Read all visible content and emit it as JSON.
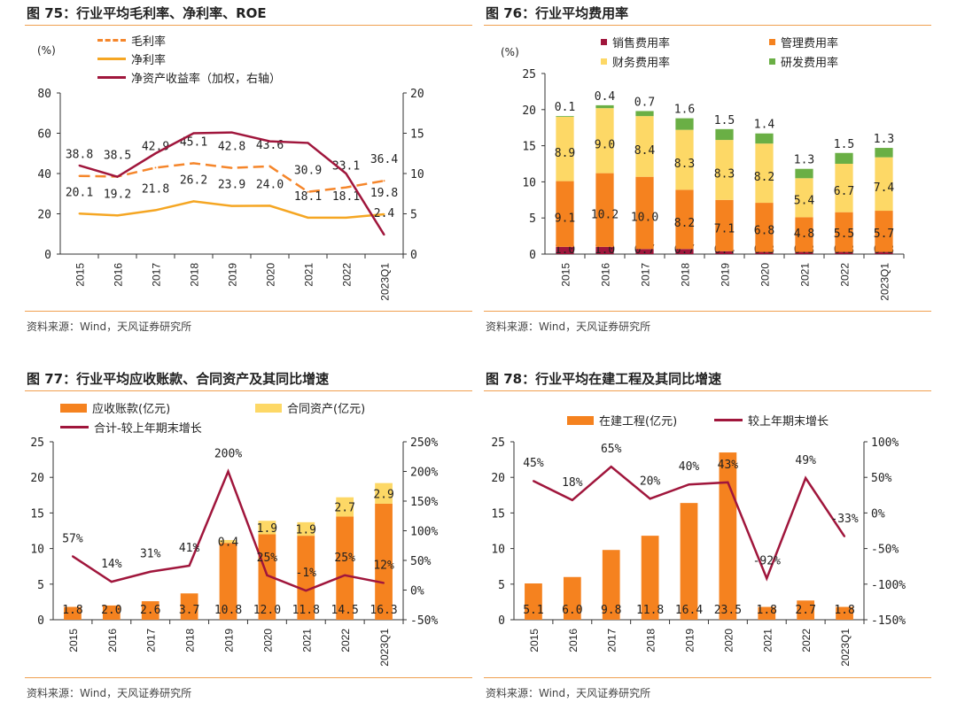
{
  "panels": [
    {
      "title": "图 75：行业平均毛利率、净利率、ROE",
      "source": "资料来源：Wind，天风证券研究所",
      "unit": "(%)"
    },
    {
      "title": "图 76：行业平均费用率",
      "source": "资料来源：Wind，天风证券研究所",
      "unit": "(%)"
    },
    {
      "title": "图 77：行业平均应收账款、合同资产及其同比增速",
      "source": "资料来源：Wind，天风证券研究所"
    },
    {
      "title": "图 78：行业平均在建工程及其同比增速",
      "source": "资料来源：Wind，天风证券研究所"
    }
  ],
  "chart_data": [
    {
      "type": "line",
      "categories": [
        "2015",
        "2016",
        "2017",
        "2018",
        "2019",
        "2020",
        "2021",
        "2022",
        "2023Q1"
      ],
      "ylim": [
        0,
        80
      ],
      "yticks": [
        0,
        20,
        40,
        60,
        80
      ],
      "y2lim": [
        0,
        20
      ],
      "y2ticks": [
        0,
        5,
        10,
        15,
        20
      ],
      "legend": "top-left",
      "series": [
        {
          "name": "毛利率",
          "kind": "line",
          "style": "dashed",
          "axis": "left",
          "color": "#F5862B",
          "values": [
            38.8,
            38.5,
            42.9,
            45.1,
            42.8,
            43.6,
            30.9,
            33.1,
            36.4
          ],
          "labels": [
            "38.8",
            "38.5",
            "42.9",
            "45.1",
            "42.8",
            "43.6",
            "30.9",
            "33.1",
            "36.4"
          ]
        },
        {
          "name": "净利率",
          "kind": "line",
          "style": "solid",
          "axis": "left",
          "color": "#F5A623",
          "values": [
            20.1,
            19.2,
            21.8,
            26.2,
            23.9,
            24.0,
            18.1,
            18.1,
            19.8
          ],
          "labels": [
            "20.1",
            "19.2",
            "21.8",
            "26.2",
            "23.9",
            "24.0",
            "18.1",
            "18.1",
            "19.8"
          ]
        },
        {
          "name": "净资产收益率（加权，右轴）",
          "kind": "line",
          "style": "solid",
          "axis": "right",
          "color": "#A0163C",
          "values": [
            11.0,
            9.6,
            12.5,
            15.0,
            15.1,
            14.0,
            13.8,
            10.0,
            2.4
          ],
          "labels": [
            "",
            "",
            "",
            "",
            "",
            "",
            "",
            "",
            "2.4"
          ]
        }
      ]
    },
    {
      "type": "bar",
      "stacked": true,
      "categories": [
        "2015",
        "2016",
        "2017",
        "2018",
        "2019",
        "2020",
        "2021",
        "2022",
        "2023Q1"
      ],
      "ylim": [
        0,
        25
      ],
      "yticks": [
        0,
        5,
        10,
        15,
        20,
        25
      ],
      "legend": "top",
      "series": [
        {
          "name": "销售费用率",
          "kind": "bar",
          "color": "#A0163C",
          "values": [
            1.0,
            1.0,
            0.7,
            0.7,
            0.4,
            0.3,
            0.3,
            0.3,
            0.3
          ]
        },
        {
          "name": "管理费用率",
          "kind": "bar",
          "color": "#F5821F",
          "values": [
            9.1,
            10.2,
            10.0,
            8.2,
            7.1,
            6.8,
            4.8,
            5.5,
            5.7
          ]
        },
        {
          "name": "财务费用率",
          "kind": "bar",
          "color": "#FDD866",
          "values": [
            8.9,
            9.0,
            8.4,
            8.3,
            8.3,
            8.2,
            5.4,
            6.7,
            7.4
          ]
        },
        {
          "name": "研发费用率",
          "kind": "bar",
          "color": "#6AAF45",
          "values": [
            0.1,
            0.4,
            0.7,
            1.6,
            1.5,
            1.4,
            1.3,
            1.5,
            1.3
          ]
        }
      ]
    },
    {
      "type": "bar",
      "stacked": true,
      "categories": [
        "2015",
        "2016",
        "2017",
        "2018",
        "2019",
        "2020",
        "2021",
        "2022",
        "2023Q1"
      ],
      "ylim": [
        0,
        25
      ],
      "yticks": [
        0,
        5,
        10,
        15,
        20,
        25
      ],
      "y2lim": [
        -50,
        250
      ],
      "y2ticks": [
        "-50%",
        "0%",
        "50%",
        "100%",
        "150%",
        "200%",
        "250%"
      ],
      "legend": "top",
      "series": [
        {
          "name": "应收账款(亿元)",
          "kind": "bar",
          "color": "#F5821F",
          "values": [
            1.8,
            2.0,
            2.6,
            3.7,
            10.8,
            12.0,
            11.8,
            14.5,
            16.3
          ],
          "labels": [
            "1.8",
            "2.0",
            "2.6",
            "3.7",
            "10.8",
            "12.0",
            "11.8",
            "14.5",
            "16.3"
          ]
        },
        {
          "name": "合同资产(亿元)",
          "kind": "bar",
          "color": "#FDD866",
          "values": [
            0,
            0,
            0,
            0,
            0.4,
            1.9,
            1.9,
            2.7,
            2.9
          ],
          "labels": [
            "",
            "",
            "",
            "",
            "0.4",
            "1.9",
            "1.9",
            "2.7",
            "2.9"
          ]
        },
        {
          "name": "合计-较上年期末增长",
          "kind": "line",
          "style": "solid",
          "axis": "right",
          "color": "#A0163C",
          "values": [
            57,
            14,
            31,
            41,
            200,
            25,
            -1,
            25,
            12
          ],
          "labels": [
            "57%",
            "14%",
            "31%",
            "41%",
            "200%",
            "25%",
            "-1%",
            "25%",
            "12%"
          ]
        }
      ]
    },
    {
      "type": "bar",
      "categories": [
        "2015",
        "2016",
        "2017",
        "2018",
        "2019",
        "2020",
        "2021",
        "2022",
        "2023Q1"
      ],
      "ylim": [
        0,
        25
      ],
      "yticks": [
        0,
        5,
        10,
        15,
        20,
        25
      ],
      "y2lim": [
        -150,
        100
      ],
      "y2ticks": [
        "-150%",
        "-100%",
        "-50%",
        "0%",
        "50%",
        "100%"
      ],
      "legend": "top",
      "series": [
        {
          "name": "在建工程(亿元)",
          "kind": "bar",
          "color": "#F5821F",
          "values": [
            5.1,
            6.0,
            9.8,
            11.8,
            16.4,
            23.5,
            1.8,
            2.7,
            1.8
          ],
          "labels": [
            "5.1",
            "6.0",
            "9.8",
            "11.8",
            "16.4",
            "23.5",
            "1.8",
            "2.7",
            "1.8"
          ]
        },
        {
          "name": "较上年期末增长",
          "kind": "line",
          "style": "solid",
          "axis": "right",
          "color": "#A0163C",
          "values": [
            45,
            18,
            65,
            20,
            40,
            43,
            -92,
            49,
            -33
          ],
          "labels": [
            "45%",
            "18%",
            "65%",
            "20%",
            "40%",
            "43%",
            "-92%",
            "49%",
            "-33%"
          ]
        }
      ]
    }
  ]
}
